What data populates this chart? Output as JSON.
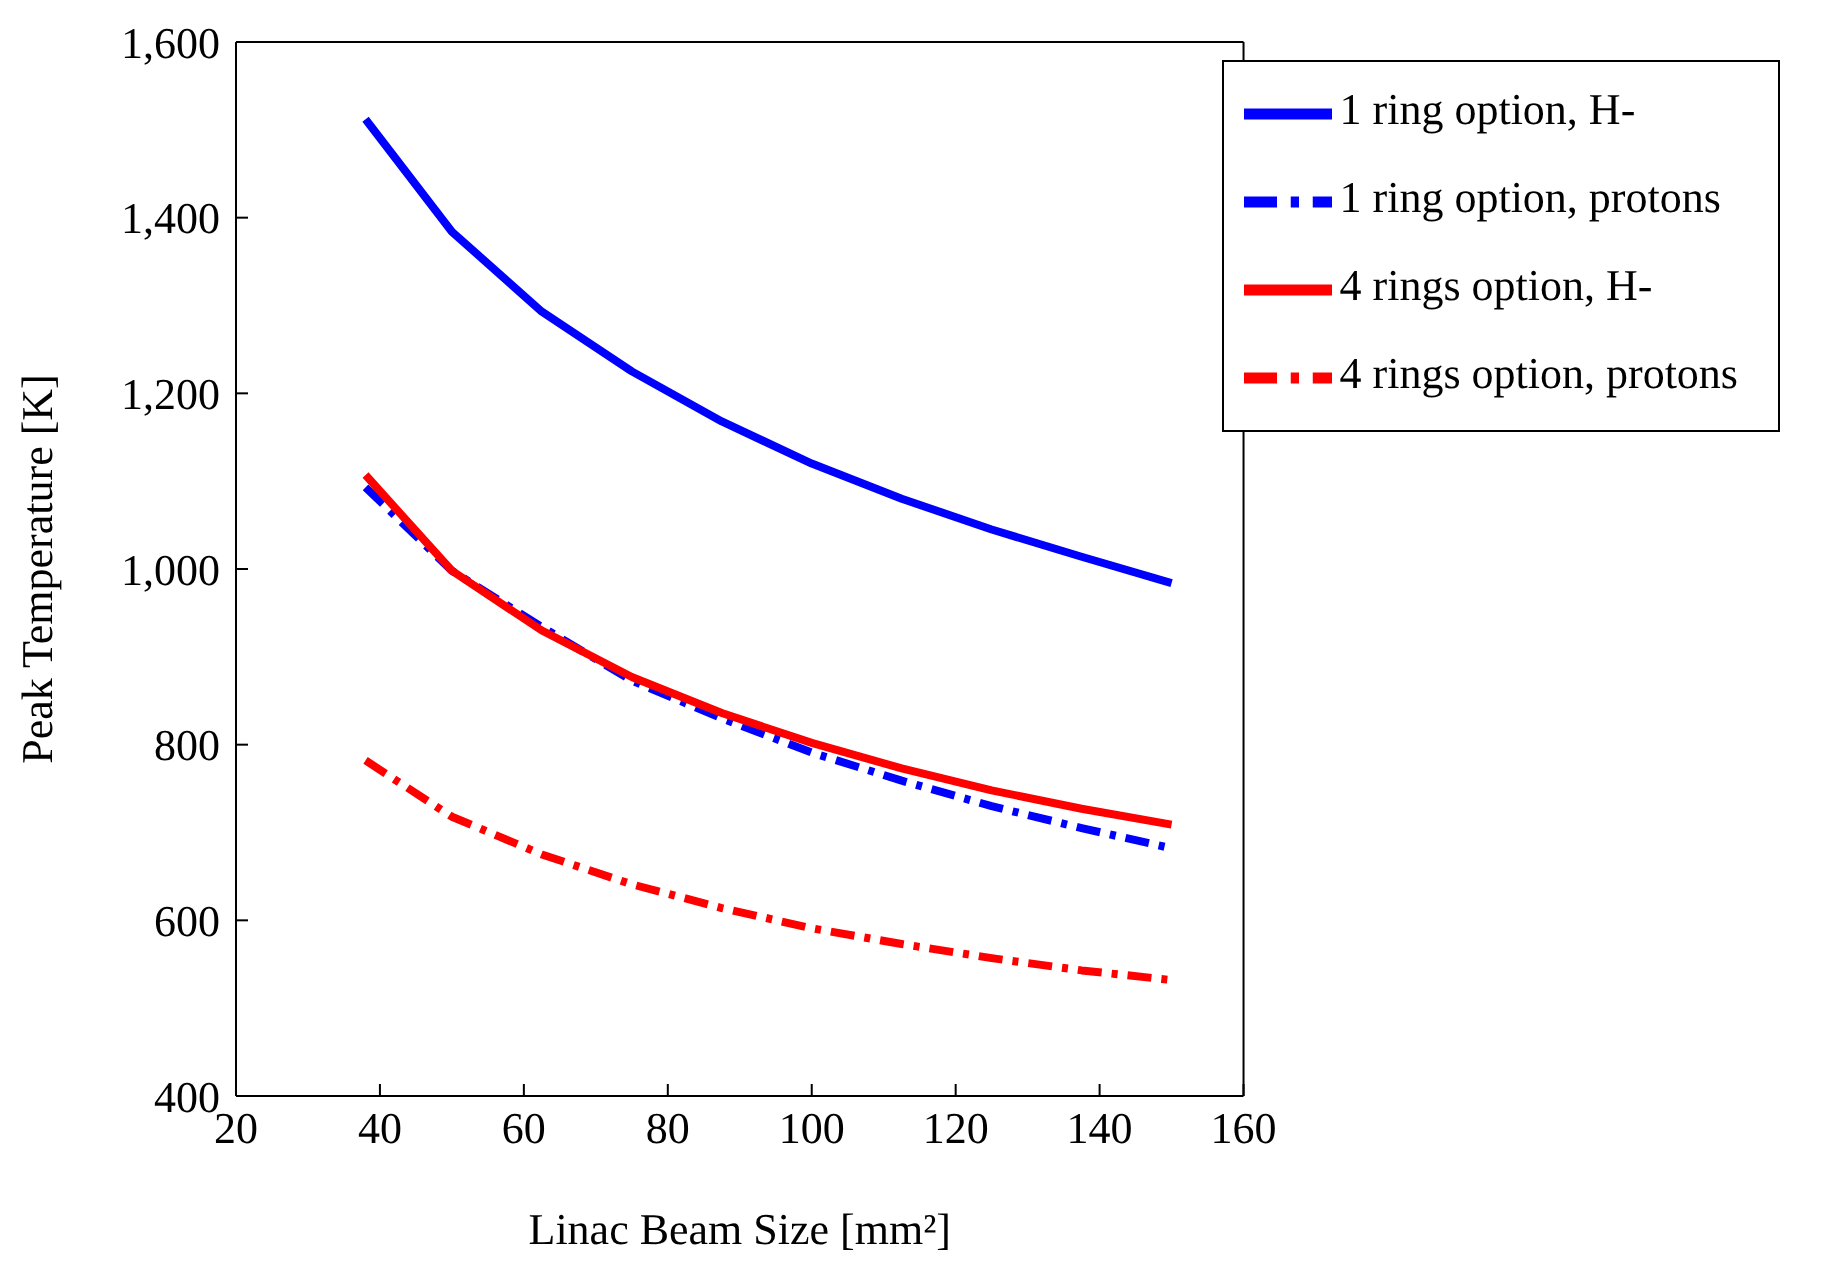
{
  "chart_data": {
    "type": "line",
    "xlabel": "Linac Beam Size [mm²]",
    "ylabel": "Peak Temperature [K]",
    "x": [
      38,
      50,
      62.5,
      75,
      87.5,
      100,
      112.5,
      125,
      137.5,
      150
    ],
    "series": [
      {
        "name": "1 ring option, H-",
        "color": "#0000ff",
        "line_style": "solid",
        "values": [
          1512,
          1384,
          1293,
          1225,
          1168,
          1120,
          1080,
          1045,
          1014,
          984
        ]
      },
      {
        "name": "1 ring option, protons",
        "color": "#0000ff",
        "line_style": "dashed",
        "values": [
          1093,
          998,
          934,
          873,
          830,
          791,
          759,
          730,
          705,
          682
        ]
      },
      {
        "name": "4 rings option, H-",
        "color": "#ff0000",
        "line_style": "solid",
        "values": [
          1107,
          998,
          930,
          877,
          836,
          802,
          773,
          748,
          727,
          709
        ]
      },
      {
        "name": "4 rings option, protons",
        "color": "#ff0000",
        "line_style": "dashed",
        "values": [
          782,
          718,
          675,
          641,
          614,
          591,
          573,
          557,
          543,
          532
        ]
      }
    ],
    "xlim": [
      20,
      160
    ],
    "xticks": [
      20,
      40,
      60,
      80,
      100,
      120,
      140,
      160
    ],
    "ylim": [
      400,
      1600
    ],
    "yticks": [
      400,
      600,
      800,
      {
        "value": 1000,
        "label": "1,000"
      },
      {
        "value": 1200,
        "label": "1,200"
      },
      {
        "value": 1400,
        "label": "1,400"
      },
      {
        "value": 1600,
        "label": "1,600"
      }
    ],
    "grid": false,
    "legend": "top right",
    "marker": "none"
  }
}
